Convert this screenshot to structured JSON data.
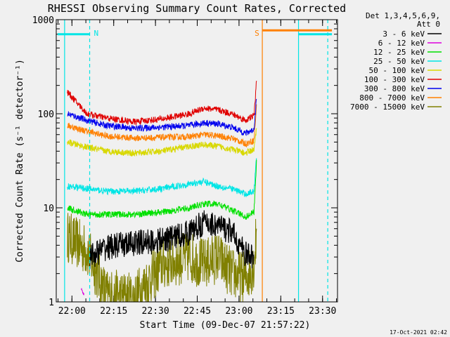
{
  "chart_data": {
    "type": "line",
    "title": "RHESSI Observing Summary Count Rates, Corrected",
    "xlabel": "Start Time (09-Dec-07 21:57:22)",
    "ylabel": "Corrected Count Rate (s⁻¹ detector⁻¹)",
    "y_scale": "log",
    "ylim": [
      1,
      1000
    ],
    "xlim_minutes": [
      -3,
      98
    ],
    "x_ticks": [
      "22:00",
      "22:15",
      "22:30",
      "22:45",
      "23:00",
      "23:15",
      "23:30"
    ],
    "y_ticks": [
      "1",
      "10",
      "100",
      "1000"
    ],
    "legend_header": [
      "Det 1,3,4,5,6,9,",
      "Att 0"
    ],
    "legend_placement": "right",
    "series": [
      {
        "name": "3 - 6 keV",
        "color": "#000000",
        "minutes": [
          9,
          15,
          25,
          35,
          45,
          50,
          55,
          60,
          65,
          68
        ],
        "values": [
          3,
          3.8,
          4.2,
          4.5,
          5.5,
          7,
          6.5,
          5.5,
          3.2,
          3
        ]
      },
      {
        "name": "6 - 12 keV",
        "color": "#dd00dd",
        "minutes": [
          6,
          7
        ],
        "values": [
          1.4,
          1.2
        ]
      },
      {
        "name": "12 - 25 keV",
        "color": "#00e000",
        "minutes": [
          1,
          8,
          15,
          25,
          35,
          45,
          50,
          55,
          60,
          65,
          68,
          69
        ],
        "values": [
          10,
          8.5,
          8.5,
          8.5,
          9,
          10,
          11,
          11,
          9.5,
          8,
          9,
          35
        ]
      },
      {
        "name": "25 - 50 keV",
        "color": "#00e5e5",
        "minutes": [
          1,
          8,
          15,
          25,
          35,
          45,
          50,
          55,
          60,
          65,
          68,
          69
        ],
        "values": [
          17,
          16,
          15,
          15,
          16,
          18,
          19,
          17,
          16,
          14,
          15,
          40
        ]
      },
      {
        "name": "50 - 100 keV",
        "color": "#d8d800",
        "minutes": [
          1,
          8,
          15,
          25,
          35,
          45,
          50,
          55,
          60,
          65,
          68,
          69
        ],
        "values": [
          50,
          44,
          40,
          38,
          40,
          45,
          47,
          45,
          42,
          38,
          42,
          70
        ]
      },
      {
        "name": "100 - 300 keV",
        "color": "#e00000",
        "minutes": [
          1,
          8,
          15,
          25,
          35,
          45,
          50,
          55,
          60,
          65,
          68,
          69
        ],
        "values": [
          170,
          100,
          90,
          82,
          88,
          100,
          115,
          110,
          100,
          85,
          95,
          240
        ]
      },
      {
        "name": "300 - 800 keV",
        "color": "#0000ee",
        "minutes": [
          1,
          8,
          15,
          25,
          35,
          45,
          50,
          55,
          60,
          65,
          68,
          69
        ],
        "values": [
          100,
          85,
          75,
          70,
          72,
          75,
          80,
          78,
          72,
          62,
          68,
          160
        ]
      },
      {
        "name": "800 - 7000 keV",
        "color": "#ff8000",
        "minutes": [
          1,
          8,
          15,
          25,
          35,
          45,
          50,
          55,
          60,
          65,
          68,
          69
        ],
        "values": [
          75,
          65,
          58,
          55,
          56,
          57,
          60,
          58,
          55,
          48,
          52,
          130
        ]
      },
      {
        "name": "7000 - 15000 keV",
        "color": "#808000",
        "minutes": [
          1,
          8,
          15,
          25,
          35,
          45,
          50,
          55,
          60,
          65,
          68,
          69
        ],
        "values": [
          5,
          3.5,
          1.2,
          1.1,
          2.5,
          3,
          2.5,
          3,
          2,
          1.8,
          2.5,
          6
        ]
      }
    ],
    "markers": [
      {
        "label": "N",
        "color": "#00e5e5",
        "minute": 9,
        "style": "dashed"
      },
      {
        "label": "S",
        "color": "#ff8000",
        "minute": 71,
        "style": "solid"
      },
      {
        "label": "",
        "color": "#00e5e5",
        "minute": 0,
        "style": "solid"
      },
      {
        "label": "",
        "color": "#00e5e5",
        "minute": 84,
        "style": "solid"
      },
      {
        "label": "",
        "color": "#00e5e5",
        "minute": 94.5,
        "style": "dashed"
      }
    ],
    "bars": [
      {
        "color": "#00e5e5",
        "from_minute": -2.5,
        "to_minute": 9,
        "value": 700
      },
      {
        "color": "#ff8000",
        "from_minute": 71,
        "to_minute": 96,
        "value": 770
      },
      {
        "color": "#00e5e5",
        "from_minute": 84,
        "to_minute": 96,
        "value": 700
      }
    ]
  },
  "footer": {
    "timestamp": "17-Oct-2021 02:42"
  }
}
